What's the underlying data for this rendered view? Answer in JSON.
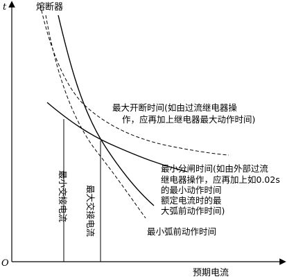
{
  "axes": {
    "y_label": "t",
    "origin_label": "O",
    "x_label": "预期电流"
  },
  "curves": {
    "fuse_label": "熔断器",
    "max_break_line1": "最大开断时间(如由过流继电器操",
    "max_break_line2": "作，应再加上继电器最大动作时间)",
    "min_break_line1": "最小分闸时间(如由外部过流",
    "min_break_line2": "继电器操作，应再加上如0.02s",
    "min_break_line3": "的最小动作时间",
    "rated_arc_line1": "额定电流时的最",
    "rated_arc_line2": "大弧前动作时间)",
    "min_arc_label": "最小弧前动作时间"
  },
  "verticals": {
    "min_transfer": "最小交接电流",
    "max_transfer": "最大交接电流"
  }
}
